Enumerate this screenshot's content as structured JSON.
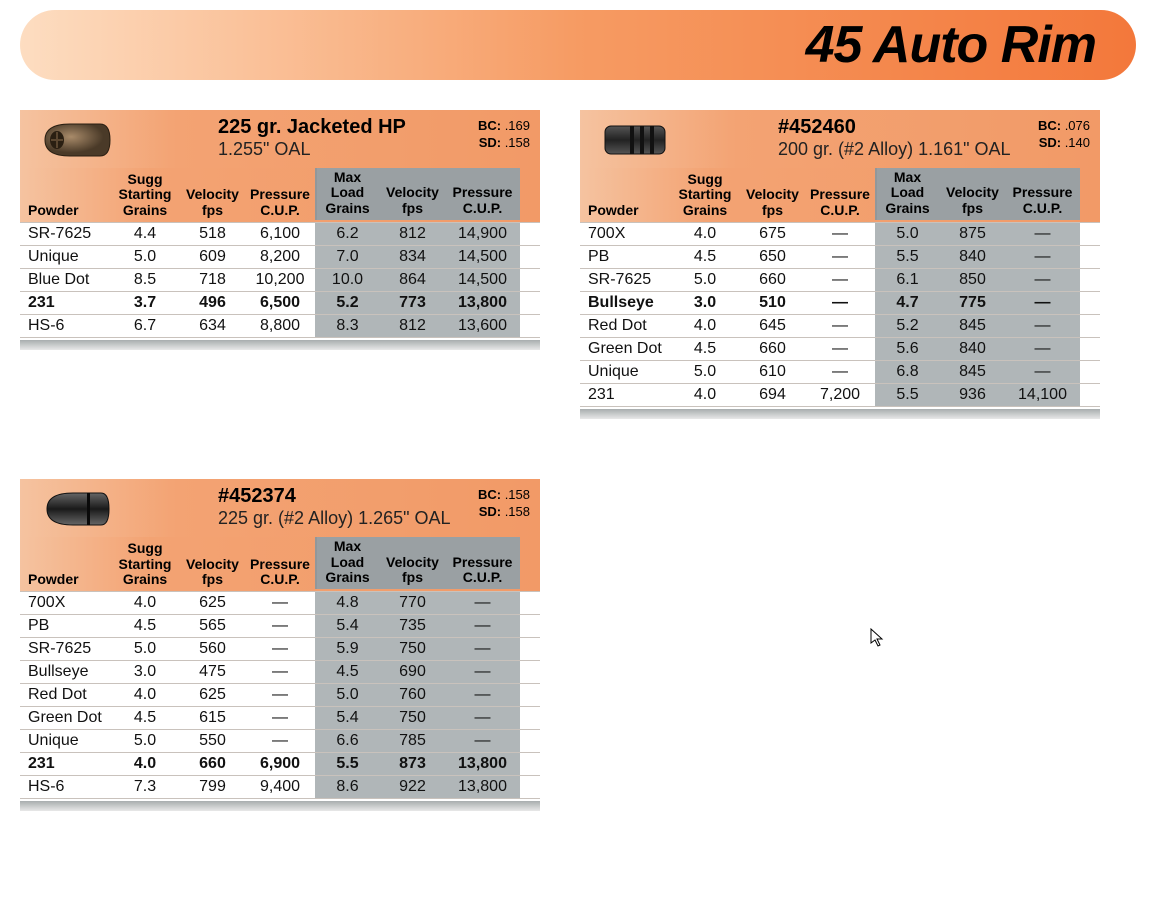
{
  "page": {
    "title": "45 Auto Rim",
    "colors": {
      "title_grad_start": "#fdddc1",
      "title_grad_end": "#f3783b",
      "head_grad_start": "#f5c3a0",
      "head_grad_end": "#f29a67",
      "max_header_bg": "#9aa0a3",
      "max_cell_bg": "#b0b6b8",
      "row_border": "#c9c2bc",
      "text": "#111111",
      "background": "#ffffff"
    },
    "fonts": {
      "title_size_pt": 52,
      "head_title_pt": 20,
      "head_sub_pt": 18,
      "col_header_pt": 14,
      "cell_pt": 16
    }
  },
  "headers": {
    "powder": "Powder",
    "sugg_line1": "Sugg",
    "sugg_line2": "Starting",
    "sugg_line3": "Grains",
    "vel_line1": "Velocity",
    "vel_line2": "fps",
    "press_line1": "Pressure",
    "press_line2": "C.U.P.",
    "max_line1": "Max",
    "max_line2": "Load",
    "max_line3": "Grains"
  },
  "tables": [
    {
      "bullet_icon": "jacketed-hp",
      "title": "225 gr. Jacketed HP",
      "subtitle": "1.255\" OAL",
      "bc_label": "BC:",
      "bc": ".169",
      "sd_label": "SD:",
      "sd": ".158",
      "rows": [
        {
          "powder": "SR-7625",
          "sugg": "4.4",
          "vel1": "518",
          "press1": "6,100",
          "max": "6.2",
          "vel2": "812",
          "press2": "14,900",
          "bold": false
        },
        {
          "powder": "Unique",
          "sugg": "5.0",
          "vel1": "609",
          "press1": "8,200",
          "max": "7.0",
          "vel2": "834",
          "press2": "14,500",
          "bold": false
        },
        {
          "powder": "Blue Dot",
          "sugg": "8.5",
          "vel1": "718",
          "press1": "10,200",
          "max": "10.0",
          "vel2": "864",
          "press2": "14,500",
          "bold": false
        },
        {
          "powder": "231",
          "sugg": "3.7",
          "vel1": "496",
          "press1": "6,500",
          "max": "5.2",
          "vel2": "773",
          "press2": "13,800",
          "bold": true
        },
        {
          "powder": "HS-6",
          "sugg": "6.7",
          "vel1": "634",
          "press1": "8,800",
          "max": "8.3",
          "vel2": "812",
          "press2": "13,600",
          "bold": false
        }
      ]
    },
    {
      "bullet_icon": "wadcutter",
      "title": "#452460",
      "subtitle": "200 gr. (#2 Alloy) 1.161\" OAL",
      "bc_label": "BC:",
      "bc": ".076",
      "sd_label": "SD:",
      "sd": ".140",
      "rows": [
        {
          "powder": "700X",
          "sugg": "4.0",
          "vel1": "675",
          "press1": "—",
          "max": "5.0",
          "vel2": "875",
          "press2": "—",
          "bold": false
        },
        {
          "powder": "PB",
          "sugg": "4.5",
          "vel1": "650",
          "press1": "—",
          "max": "5.5",
          "vel2": "840",
          "press2": "—",
          "bold": false
        },
        {
          "powder": "SR-7625",
          "sugg": "5.0",
          "vel1": "660",
          "press1": "—",
          "max": "6.1",
          "vel2": "850",
          "press2": "—",
          "bold": false
        },
        {
          "powder": "Bullseye",
          "sugg": "3.0",
          "vel1": "510",
          "press1": "—",
          "max": "4.7",
          "vel2": "775",
          "press2": "—",
          "bold": true
        },
        {
          "powder": "Red Dot",
          "sugg": "4.0",
          "vel1": "645",
          "press1": "—",
          "max": "5.2",
          "vel2": "845",
          "press2": "—",
          "bold": false
        },
        {
          "powder": "Green Dot",
          "sugg": "4.5",
          "vel1": "660",
          "press1": "—",
          "max": "5.6",
          "vel2": "840",
          "press2": "—",
          "bold": false
        },
        {
          "powder": "Unique",
          "sugg": "5.0",
          "vel1": "610",
          "press1": "—",
          "max": "6.8",
          "vel2": "845",
          "press2": "—",
          "bold": false
        },
        {
          "powder": "231",
          "sugg": "4.0",
          "vel1": "694",
          "press1": "7,200",
          "max": "5.5",
          "vel2": "936",
          "press2": "14,100",
          "bold": false
        }
      ]
    },
    {
      "bullet_icon": "roundnose",
      "title": "#452374",
      "subtitle": "225 gr. (#2 Alloy) 1.265\" OAL",
      "bc_label": "BC:",
      "bc": ".158",
      "sd_label": "SD:",
      "sd": ".158",
      "rows": [
        {
          "powder": "700X",
          "sugg": "4.0",
          "vel1": "625",
          "press1": "—",
          "max": "4.8",
          "vel2": "770",
          "press2": "—",
          "bold": false
        },
        {
          "powder": "PB",
          "sugg": "4.5",
          "vel1": "565",
          "press1": "—",
          "max": "5.4",
          "vel2": "735",
          "press2": "—",
          "bold": false
        },
        {
          "powder": "SR-7625",
          "sugg": "5.0",
          "vel1": "560",
          "press1": "—",
          "max": "5.9",
          "vel2": "750",
          "press2": "—",
          "bold": false
        },
        {
          "powder": "Bullseye",
          "sugg": "3.0",
          "vel1": "475",
          "press1": "—",
          "max": "4.5",
          "vel2": "690",
          "press2": "—",
          "bold": false
        },
        {
          "powder": "Red Dot",
          "sugg": "4.0",
          "vel1": "625",
          "press1": "—",
          "max": "5.0",
          "vel2": "760",
          "press2": "—",
          "bold": false
        },
        {
          "powder": "Green Dot",
          "sugg": "4.5",
          "vel1": "615",
          "press1": "—",
          "max": "5.4",
          "vel2": "750",
          "press2": "—",
          "bold": false
        },
        {
          "powder": "Unique",
          "sugg": "5.0",
          "vel1": "550",
          "press1": "—",
          "max": "6.6",
          "vel2": "785",
          "press2": "—",
          "bold": false
        },
        {
          "powder": "231",
          "sugg": "4.0",
          "vel1": "660",
          "press1": "6,900",
          "max": "5.5",
          "vel2": "873",
          "press2": "13,800",
          "bold": true
        },
        {
          "powder": "HS-6",
          "sugg": "7.3",
          "vel1": "799",
          "press1": "9,400",
          "max": "8.6",
          "vel2": "922",
          "press2": "13,800",
          "bold": false
        }
      ]
    }
  ]
}
